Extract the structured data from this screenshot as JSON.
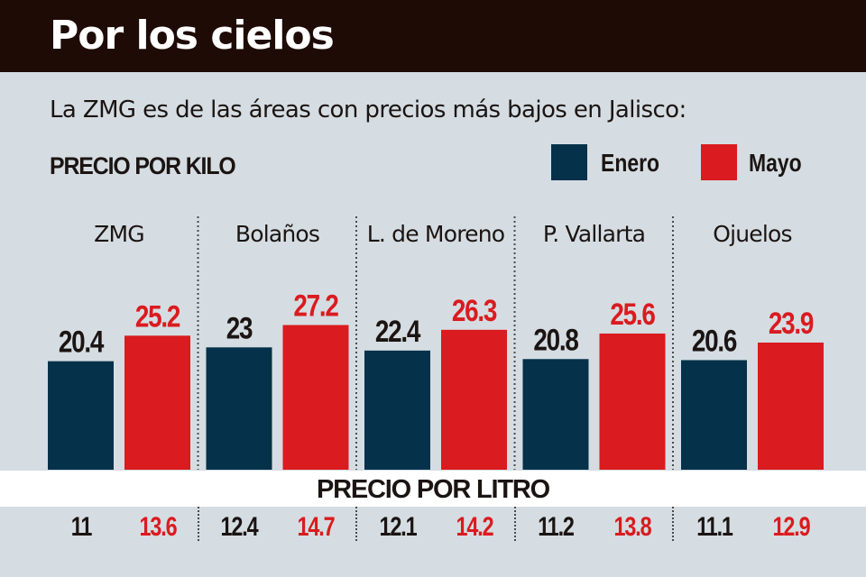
{
  "header": {
    "title": "Por los cielos"
  },
  "subtitle": "La ZMG es de las áreas con precios más bajos en Jalisco:",
  "colors": {
    "header_bg": "#1e0b06",
    "background": "#d5dde2",
    "enero": "#05314a",
    "mayo": "#da1b1f",
    "enero_text": "#1b1412",
    "mayo_text": "#da1b1f"
  },
  "chart_data": {
    "type": "bar",
    "title": "PRECIO POR KILO",
    "categories": [
      "ZMG",
      "Bolaños",
      "L. de Moreno",
      "P. Vallarta",
      "Ojuelos"
    ],
    "legend": [
      "Enero",
      "Mayo"
    ],
    "legend_position": "top-right",
    "grid": false,
    "series": [
      {
        "name": "Enero",
        "values": [
          20.4,
          23,
          22.4,
          20.8,
          20.6
        ],
        "labels": [
          "20.4",
          "23",
          "22.4",
          "20.8",
          "20.6"
        ]
      },
      {
        "name": "Mayo",
        "values": [
          25.2,
          27.2,
          26.3,
          25.6,
          23.9
        ],
        "labels": [
          "25.2",
          "27.2",
          "26.3",
          "25.6",
          "23.9"
        ]
      }
    ],
    "xlabel": "",
    "ylabel": ""
  },
  "litro": {
    "title": "PRECIO POR LITRO",
    "enero": [
      "11",
      "12.4",
      "12.1",
      "11.2",
      "11.1"
    ],
    "mayo": [
      "13.6",
      "14.7",
      "14.2",
      "13.8",
      "12.9"
    ]
  }
}
